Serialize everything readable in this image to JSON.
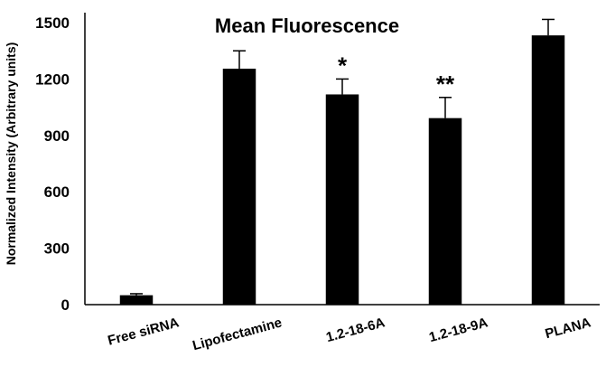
{
  "chart_data": {
    "type": "bar",
    "title": "Mean Fluorescence",
    "ylabel": "Normalized Intensity  (Arbitrary units)",
    "xlabel": "",
    "ylim": [
      0,
      1500
    ],
    "yticks": [
      "0",
      "300",
      "600",
      "900",
      "1200",
      "1500"
    ],
    "categories": [
      "Free siRNA",
      "Lipofectamine",
      "1.2-18-6A",
      "1.2-18-9A",
      "PLANA"
    ],
    "values": [
      50,
      1255,
      1118,
      992,
      1432
    ],
    "errors": [
      8,
      95,
      82,
      110,
      85
    ],
    "significance": [
      "",
      "",
      "*",
      "**",
      ""
    ],
    "bar_color": "#000000",
    "grid": false,
    "legend": "none"
  }
}
